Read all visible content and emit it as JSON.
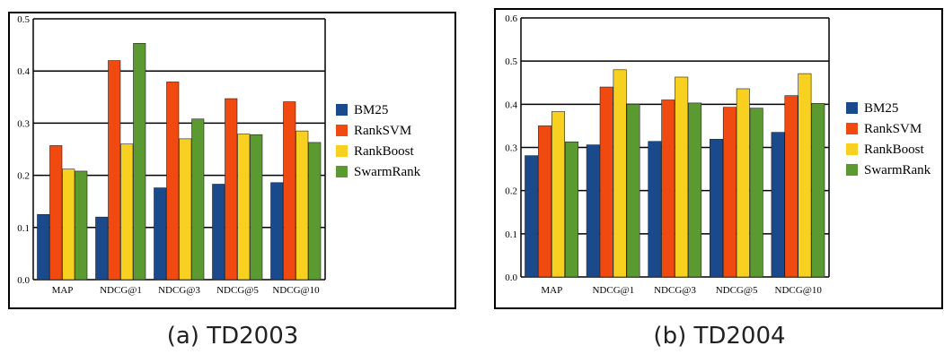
{
  "chart_data": [
    {
      "type": "bar",
      "caption": "(a) TD2003",
      "categories": [
        "MAP",
        "NDCG@1",
        "NDCG@3",
        "NDCG@5",
        "NDCG@10"
      ],
      "series": [
        {
          "name": "BM25",
          "values": [
            0.125,
            0.12,
            0.176,
            0.183,
            0.186
          ]
        },
        {
          "name": "RankSVM",
          "values": [
            0.257,
            0.42,
            0.379,
            0.347,
            0.341
          ]
        },
        {
          "name": "RankBoost",
          "values": [
            0.212,
            0.26,
            0.27,
            0.279,
            0.285
          ]
        },
        {
          "name": "SwarmRank",
          "values": [
            0.208,
            0.453,
            0.308,
            0.278,
            0.263
          ]
        }
      ],
      "ylim": [
        0,
        0.5
      ],
      "yticks": [
        "0.0",
        "0.1",
        "0.2",
        "0.3",
        "0.4",
        "0.5"
      ],
      "grid": true,
      "legend": "right"
    },
    {
      "type": "bar",
      "caption": "(b) TD2004",
      "categories": [
        "MAP",
        "NDCG@1",
        "NDCG@3",
        "NDCG@5",
        "NDCG@10"
      ],
      "series": [
        {
          "name": "BM25",
          "values": [
            0.281,
            0.306,
            0.314,
            0.319,
            0.335
          ]
        },
        {
          "name": "RankSVM",
          "values": [
            0.35,
            0.44,
            0.41,
            0.393,
            0.42
          ]
        },
        {
          "name": "RankBoost",
          "values": [
            0.383,
            0.48,
            0.463,
            0.436,
            0.471
          ]
        },
        {
          "name": "SwarmRank",
          "values": [
            0.313,
            0.4,
            0.403,
            0.391,
            0.402
          ]
        }
      ],
      "ylim": [
        0,
        0.6
      ],
      "yticks": [
        "0.0",
        "0.1",
        "0.2",
        "0.3",
        "0.4",
        "0.5",
        "0.6"
      ],
      "grid": true,
      "legend": "right"
    }
  ],
  "colors": {
    "BM25": "#1a4a8c",
    "RankSVM": "#f04a10",
    "RankBoost": "#f8d020",
    "SwarmRank": "#5a9a30"
  }
}
